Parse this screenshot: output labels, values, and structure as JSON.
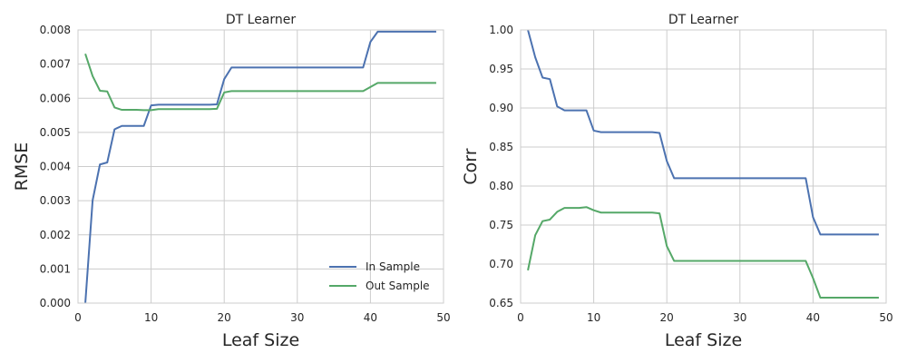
{
  "colors": {
    "in_sample": "#4c72b0",
    "out_sample": "#55a868",
    "grid": "#cccccc",
    "text": "#262626"
  },
  "chart_data": [
    {
      "type": "line",
      "title": "DT Learner",
      "xlabel": "Leaf Size",
      "ylabel": "RMSE",
      "xlim": [
        0,
        50
      ],
      "ylim": [
        0.0,
        0.008
      ],
      "xticks": [
        0,
        10,
        20,
        30,
        40,
        50
      ],
      "yticks": [
        0.0,
        0.001,
        0.002,
        0.003,
        0.004,
        0.005,
        0.006,
        0.007,
        0.008
      ],
      "xtick_labels": [
        "0",
        "10",
        "20",
        "30",
        "40",
        "50"
      ],
      "ytick_labels": [
        "0.000",
        "0.001",
        "0.002",
        "0.003",
        "0.004",
        "0.005",
        "0.006",
        "0.007",
        "0.008"
      ],
      "grid": true,
      "legend_position": "bottom-right",
      "x": [
        1,
        2,
        3,
        4,
        5,
        6,
        7,
        8,
        9,
        10,
        11,
        12,
        13,
        14,
        15,
        16,
        17,
        18,
        19,
        20,
        21,
        22,
        23,
        24,
        25,
        26,
        27,
        28,
        29,
        30,
        31,
        32,
        33,
        34,
        35,
        36,
        37,
        38,
        39,
        40,
        41,
        42,
        43,
        44,
        45,
        46,
        47,
        48,
        49
      ],
      "series": [
        {
          "name": "In Sample",
          "color": "#4c72b0",
          "values": [
            0.0,
            0.00301,
            0.00406,
            0.00412,
            0.00509,
            0.00519,
            0.00519,
            0.00519,
            0.00519,
            0.00579,
            0.00581,
            0.00581,
            0.00581,
            0.00581,
            0.00581,
            0.00581,
            0.00581,
            0.00581,
            0.00582,
            0.00656,
            0.0069,
            0.0069,
            0.0069,
            0.0069,
            0.0069,
            0.0069,
            0.0069,
            0.0069,
            0.0069,
            0.0069,
            0.0069,
            0.0069,
            0.0069,
            0.0069,
            0.0069,
            0.0069,
            0.0069,
            0.0069,
            0.0069,
            0.00765,
            0.00795,
            0.00795,
            0.00795,
            0.00795,
            0.00795,
            0.00795,
            0.00795,
            0.00795,
            0.00795
          ]
        },
        {
          "name": "Out Sample",
          "color": "#55a868",
          "values": [
            0.0073,
            0.00665,
            0.00622,
            0.0062,
            0.00573,
            0.00566,
            0.00566,
            0.00566,
            0.00565,
            0.00565,
            0.00568,
            0.00568,
            0.00568,
            0.00568,
            0.00568,
            0.00568,
            0.00568,
            0.00568,
            0.00569,
            0.00617,
            0.00621,
            0.00621,
            0.00621,
            0.00621,
            0.00621,
            0.00621,
            0.00621,
            0.00621,
            0.00621,
            0.00621,
            0.00621,
            0.00621,
            0.00621,
            0.00621,
            0.00621,
            0.00621,
            0.00621,
            0.00621,
            0.00621,
            0.00633,
            0.00645,
            0.00645,
            0.00645,
            0.00645,
            0.00645,
            0.00645,
            0.00645,
            0.00645,
            0.00645
          ]
        }
      ]
    },
    {
      "type": "line",
      "title": "DT Learner",
      "xlabel": "Leaf Size",
      "ylabel": "Corr",
      "xlim": [
        0,
        50
      ],
      "ylim": [
        0.65,
        1.0
      ],
      "xticks": [
        0,
        10,
        20,
        30,
        40,
        50
      ],
      "yticks": [
        0.65,
        0.7,
        0.75,
        0.8,
        0.85,
        0.9,
        0.95,
        1.0
      ],
      "xtick_labels": [
        "0",
        "10",
        "20",
        "30",
        "40",
        "50"
      ],
      "ytick_labels": [
        "0.65",
        "0.70",
        "0.75",
        "0.80",
        "0.85",
        "0.90",
        "0.95",
        "1.00"
      ],
      "grid": true,
      "x": [
        1,
        2,
        3,
        4,
        5,
        6,
        7,
        8,
        9,
        10,
        11,
        12,
        13,
        14,
        15,
        16,
        17,
        18,
        19,
        20,
        21,
        22,
        23,
        24,
        25,
        26,
        27,
        28,
        29,
        30,
        31,
        32,
        33,
        34,
        35,
        36,
        37,
        38,
        39,
        40,
        41,
        42,
        43,
        44,
        45,
        46,
        47,
        48,
        49
      ],
      "series": [
        {
          "name": "In Sample",
          "color": "#4c72b0",
          "values": [
            1.0,
            0.965,
            0.939,
            0.937,
            0.902,
            0.897,
            0.897,
            0.897,
            0.897,
            0.871,
            0.869,
            0.869,
            0.869,
            0.869,
            0.869,
            0.869,
            0.869,
            0.869,
            0.868,
            0.832,
            0.81,
            0.81,
            0.81,
            0.81,
            0.81,
            0.81,
            0.81,
            0.81,
            0.81,
            0.81,
            0.81,
            0.81,
            0.81,
            0.81,
            0.81,
            0.81,
            0.81,
            0.81,
            0.81,
            0.76,
            0.738,
            0.738,
            0.738,
            0.738,
            0.738,
            0.738,
            0.738,
            0.738,
            0.738
          ]
        },
        {
          "name": "Out Sample",
          "color": "#55a868",
          "values": [
            0.692,
            0.737,
            0.755,
            0.757,
            0.767,
            0.772,
            0.772,
            0.772,
            0.773,
            0.769,
            0.766,
            0.766,
            0.766,
            0.766,
            0.766,
            0.766,
            0.766,
            0.766,
            0.765,
            0.723,
            0.704,
            0.704,
            0.704,
            0.704,
            0.704,
            0.704,
            0.704,
            0.704,
            0.704,
            0.704,
            0.704,
            0.704,
            0.704,
            0.704,
            0.704,
            0.704,
            0.704,
            0.704,
            0.704,
            0.682,
            0.657,
            0.657,
            0.657,
            0.657,
            0.657,
            0.657,
            0.657,
            0.657,
            0.657
          ]
        }
      ]
    }
  ]
}
